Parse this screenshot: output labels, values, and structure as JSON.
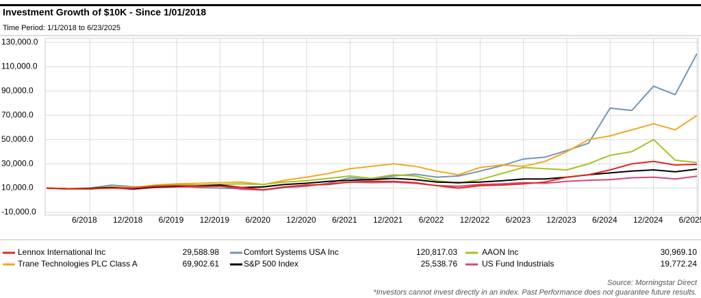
{
  "chart_data": {
    "type": "line",
    "title": "Investment Growth of $10K  - Since 1/01/2018",
    "subtitle": "Time Period: 1/1/2018 to 6/23/2025",
    "source": "Source: Morningstar Direct",
    "note": "*Investors cannot invest directly in an index. Past Performance does not guarantee future results.",
    "categories": [
      null,
      null,
      "6/2018",
      null,
      "12/2018",
      null,
      "6/2019",
      null,
      "12/2019",
      null,
      "6/2020",
      null,
      "12/2020",
      null,
      "6/2021",
      null,
      "12/2021",
      null,
      "6/2022",
      null,
      "12/2022",
      null,
      "6/2023",
      null,
      "12/2023",
      null,
      "6/2024",
      null,
      "12/2024",
      null,
      "6/2025"
    ],
    "ylim": [
      -10000,
      130000
    ],
    "yticks": [
      {
        "value": -10000,
        "label": "-10,000.0"
      },
      {
        "value": 10000,
        "label": "10,000.0"
      },
      {
        "value": 30000,
        "label": "30,000.0"
      },
      {
        "value": 50000,
        "label": "50,000.0"
      },
      {
        "value": 70000,
        "label": "70,000.0"
      },
      {
        "value": 90000,
        "label": "90,000.0"
      },
      {
        "value": 110000,
        "label": "110,000.0"
      },
      {
        "value": 130000,
        "label": "130,000.0"
      }
    ],
    "grid": true,
    "series": [
      {
        "name": "Lennox International Inc",
        "color": "#e8251f",
        "end_value": "29,588.98",
        "values": [
          10000,
          9500,
          9500,
          10000,
          10000,
          11500,
          12000,
          11500,
          11500,
          10500,
          8500,
          11000,
          12500,
          13000,
          15000,
          15500,
          15500,
          14500,
          12000,
          10000,
          12000,
          12500,
          13500,
          15000,
          19000,
          21000,
          25000,
          30000,
          32000,
          29000,
          29588.98
        ]
      },
      {
        "name": "Comfort Systems USA Inc",
        "color": "#7394b6",
        "end_value": "120,817.03",
        "values": [
          10000,
          9500,
          10000,
          12500,
          11000,
          11500,
          12000,
          10500,
          10000,
          9500,
          8500,
          10500,
          11500,
          14000,
          18500,
          17000,
          20000,
          21500,
          19000,
          20000,
          24000,
          28500,
          34000,
          35500,
          41000,
          47000,
          76000,
          74000,
          94000,
          87000,
          120817.03
        ]
      },
      {
        "name": "AAON Inc",
        "color": "#a8c023",
        "end_value": "30,969.10",
        "values": [
          10000,
          9500,
          9000,
          10500,
          10000,
          12000,
          13000,
          12500,
          13000,
          13500,
          13000,
          15000,
          16000,
          18000,
          20000,
          18000,
          21000,
          20000,
          16000,
          14000,
          17000,
          22000,
          27000,
          26000,
          25000,
          30000,
          37000,
          40000,
          50000,
          33000,
          30969.1
        ]
      },
      {
        "name": "Trane Technologies PLC Class A",
        "color": "#f5a623",
        "end_value": "69,902.61",
        "values": [
          10000,
          9000,
          9500,
          11000,
          10500,
          12500,
          13500,
          14000,
          14500,
          15000,
          13000,
          16500,
          19000,
          22000,
          26000,
          28000,
          30000,
          28000,
          24000,
          21000,
          27000,
          29000,
          28000,
          32000,
          40000,
          50000,
          53000,
          58000,
          63000,
          58000,
          69902.61
        ]
      },
      {
        "name": "S&P 500 Index",
        "color": "#000000",
        "end_value": "25,538.76",
        "values": [
          10000,
          9500,
          9800,
          10500,
          9500,
          11000,
          11500,
          11800,
          12500,
          10500,
          11000,
          13000,
          14000,
          15500,
          16500,
          17000,
          18000,
          17000,
          15000,
          14500,
          15000,
          16000,
          17500,
          17500,
          19000,
          21000,
          22500,
          24000,
          25000,
          23500,
          25538.76
        ]
      },
      {
        "name": "US Fund Industrials",
        "color": "#d6457a",
        "end_value": "19,772.24",
        "values": [
          10000,
          9500,
          9500,
          10200,
          9000,
          10500,
          11000,
          11000,
          11800,
          9000,
          8500,
          11000,
          12000,
          13500,
          15000,
          14500,
          15000,
          14000,
          12000,
          11500,
          13000,
          13500,
          14500,
          14000,
          15500,
          16500,
          17000,
          18500,
          19000,
          17500,
          19772.24
        ]
      }
    ]
  }
}
